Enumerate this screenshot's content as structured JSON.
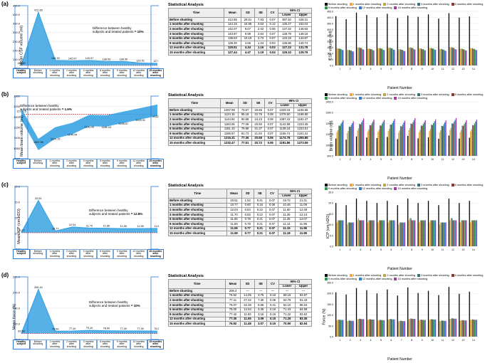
{
  "colors": {
    "line_fill": "#3aa3e3",
    "baseline": "#d8262b",
    "frame": "#2a7ad4",
    "bars": [
      "#000000",
      "#f0a83c",
      "#bfa84a",
      "#3e6e7a",
      "#8a3a2a",
      "#2a9a4a",
      "#2a7ad4",
      "#a33aa3"
    ],
    "grid": "#cfd4d8"
  },
  "legend_labels": [
    "Before shunting",
    "1 months after shunting",
    "2 months after shunting",
    "3 months after shunting",
    "6 months after shunting",
    "9 months after shunting",
    "12 months after shunting",
    "15 months after shunting"
  ],
  "x_categories": [
    "Healthy subject",
    "Before shunting",
    "1 months after shunting",
    "2 months after shunting",
    "3 months after shunting",
    "6 months after shunting",
    "9 months after shunting",
    "12 months after shunting",
    "15 months after shunting"
  ],
  "panels": [
    {
      "id": "a",
      "ylabel": "Mean CSF volume (ml)",
      "bar_ylabel": "CSF volume (ml)",
      "ylim": [
        100,
        450
      ],
      "yticks": [
        100,
        150,
        200,
        250,
        300,
        350,
        400,
        450
      ],
      "baseline": 116.3,
      "values": [
        116.3,
        412.85,
        144.15,
        142.07,
        143.97,
        138.53,
        138.3,
        129.51,
        127.44
      ],
      "diff_text": "Difference between healthy\nsubjects and treated patients",
      "diff_pct": "= 10%",
      "diff_xy": [
        130,
        38
      ],
      "bar_ylim": [
        0,
        450
      ],
      "bar_yticks": [
        0,
        50,
        100,
        150,
        200,
        250,
        300,
        350,
        400,
        450
      ],
      "bars": [
        [
          410,
          145,
          140,
          142,
          138,
          138,
          130,
          128
        ],
        [
          385,
          130,
          128,
          130,
          125,
          125,
          118,
          116
        ],
        [
          440,
          150,
          148,
          150,
          145,
          145,
          135,
          132
        ],
        [
          420,
          140,
          138,
          140,
          135,
          135,
          128,
          125
        ],
        [
          400,
          145,
          142,
          145,
          140,
          140,
          130,
          128
        ],
        [
          430,
          148,
          146,
          148,
          142,
          142,
          132,
          130
        ],
        [
          395,
          135,
          133,
          135,
          130,
          130,
          122,
          120
        ],
        [
          415,
          150,
          148,
          150,
          145,
          145,
          135,
          132
        ],
        [
          405,
          142,
          140,
          142,
          136,
          136,
          128,
          126
        ],
        [
          425,
          146,
          144,
          146,
          140,
          140,
          132,
          130
        ],
        [
          390,
          138,
          136,
          138,
          132,
          132,
          124,
          122
        ],
        [
          435,
          152,
          150,
          152,
          146,
          146,
          136,
          134
        ],
        [
          398,
          140,
          138,
          140,
          134,
          134,
          126,
          124
        ],
        [
          408,
          144,
          142,
          144,
          138,
          138,
          130,
          128
        ]
      ],
      "stats": [
        [
          "Before shunting",
          "412.85",
          "29.51",
          "7.83",
          "0.07",
          "397.40",
          "428.31"
        ],
        [
          "1 months after shunting",
          "144.15",
          "16.96",
          "4.53",
          "0.12",
          "135.27",
          "153.04"
        ],
        [
          "2 months after shunting",
          "142.07",
          "9.07",
          "2.42",
          "0.06",
          "137.32",
          "146.83"
        ],
        [
          "3 months after shunting",
          "143.97",
          "9.89",
          "2.64",
          "0.07",
          "138.79",
          "149.16"
        ],
        [
          "6 months after shunting",
          "138.53",
          "10.19",
          "2.72",
          "0.07",
          "133.19",
          "143.87"
        ],
        [
          "9 months after shunting",
          "138.30",
          "4.65",
          "1.24",
          "0.03",
          "135.86",
          "140.74"
        ],
        [
          "12 months after shunting",
          "129.51",
          "4.34",
          "1.16",
          "0.03",
          "127.23",
          "131.78"
        ],
        [
          "15 months after shunting",
          "127.44",
          "4.47",
          "1.19",
          "0.04",
          "125.10",
          "129.79"
        ]
      ]
    },
    {
      "id": "b",
      "ylabel": "Mean brain volume (ml)",
      "bar_ylabel": "Brain volume (ml)",
      "ylim": [
        1000,
        1300
      ],
      "yticks": [
        1000,
        1050,
        1100,
        1150,
        1200,
        1250,
        1300
      ],
      "baseline": 1213.15,
      "values": [
        1213.15,
        1067.99,
        1124.15,
        1144.94,
        1183.06,
        1181.1,
        1198.57,
        1215.31,
        1232.47
      ],
      "band": true,
      "diff_text": "Difference between healthy\nsubjects and treated patients",
      "diff_pct": "= 1.6%",
      "diff_xy": [
        28,
        20
      ],
      "bar_ylim": [
        900,
        1400
      ],
      "bar_yticks": [
        900,
        1000,
        1100,
        1200,
        1300,
        1400
      ],
      "bars": [
        [
          1060,
          1120,
          1140,
          1180,
          1178,
          1196,
          1212,
          1230
        ],
        [
          1050,
          1110,
          1130,
          1170,
          1168,
          1186,
          1202,
          1220
        ],
        [
          1080,
          1135,
          1155,
          1195,
          1192,
          1210,
          1228,
          1245
        ],
        [
          1070,
          1125,
          1145,
          1185,
          1182,
          1200,
          1218,
          1235
        ],
        [
          1065,
          1122,
          1142,
          1182,
          1180,
          1198,
          1215,
          1232
        ],
        [
          1075,
          1130,
          1150,
          1190,
          1188,
          1205,
          1222,
          1240
        ],
        [
          1055,
          1115,
          1135,
          1175,
          1172,
          1190,
          1208,
          1225
        ],
        [
          1085,
          1138,
          1158,
          1198,
          1195,
          1212,
          1230,
          1248
        ],
        [
          1062,
          1120,
          1140,
          1180,
          1178,
          1195,
          1212,
          1230
        ],
        [
          1072,
          1128,
          1148,
          1188,
          1185,
          1202,
          1220,
          1238
        ],
        [
          1058,
          1118,
          1138,
          1178,
          1175,
          1192,
          1210,
          1228
        ],
        [
          1088,
          1140,
          1160,
          1200,
          1198,
          1215,
          1232,
          1250
        ],
        [
          1060,
          1120,
          1140,
          1180,
          1178,
          1195,
          1212,
          1230
        ],
        [
          1068,
          1125,
          1145,
          1185,
          1182,
          1200,
          1218,
          1235
        ]
      ],
      "stats": [
        [
          "Before shunting",
          "1067.99",
          "73.57",
          "19.66",
          "0.07",
          "1029.44",
          "1106.55"
        ],
        [
          "1 months after shunting",
          "1124.15",
          "85.18",
          "22.76",
          "0.08",
          "1079.50",
          "1168.80"
        ],
        [
          "2 months after shunting",
          "1144.94",
          "90.68",
          "24.23",
          "0.08",
          "1097.42",
          "1192.47"
        ],
        [
          "3 months after shunting",
          "1183.06",
          "77.06",
          "20.60",
          "0.07",
          "1142.68",
          "1223.45"
        ],
        [
          "6 months after shunting",
          "1181.10",
          "79.98",
          "21.37",
          "0.07",
          "1139.18",
          "1223.01"
        ],
        [
          "9 months after shunting",
          "1198.57",
          "81.73",
          "21.84",
          "0.07",
          "1155.74",
          "1241.41"
        ],
        [
          "12 months after shunting",
          "1215.31",
          "77.36",
          "20.68",
          "0.06",
          "1174.78",
          "1255.85"
        ],
        [
          "15 months after shunting",
          "1232.47",
          "77.51",
          "20.72",
          "0.06",
          "1191.86",
          "1273.09"
        ]
      ]
    },
    {
      "id": "c",
      "ylabel": "Mean ICP (cm H2O)",
      "bar_ylabel": "ICP (cm H2O)",
      "ylim": [
        5,
        25
      ],
      "yticks": [
        5,
        10,
        15,
        20,
        25
      ],
      "baseline": 10.27,
      "values": [
        10.27,
        20.51,
        10.77,
        12.04,
        11.7,
        11.66,
        11.55,
        11.55,
        11.59
      ],
      "diff_text": "Difference between healthy\nsubjects and treated patients",
      "diff_pct": "= 12.8%",
      "diff_xy": [
        125,
        40
      ],
      "bar_ylim": [
        0,
        25
      ],
      "bar_yticks": [
        0,
        5,
        10,
        15,
        20,
        25
      ],
      "bars": [
        [
          20,
          11,
          12,
          12,
          12,
          12,
          12,
          12
        ],
        [
          19,
          10,
          11,
          11,
          11,
          11,
          11,
          11
        ],
        [
          22,
          12,
          13,
          12,
          12,
          12,
          12,
          12
        ],
        [
          21,
          11,
          12,
          12,
          12,
          12,
          12,
          12
        ],
        [
          20,
          11,
          12,
          12,
          12,
          12,
          12,
          12
        ],
        [
          21,
          11,
          12,
          12,
          12,
          12,
          12,
          12
        ],
        [
          19,
          10,
          11,
          11,
          11,
          11,
          11,
          11
        ],
        [
          22,
          12,
          13,
          13,
          12,
          12,
          12,
          12
        ],
        [
          20,
          11,
          12,
          12,
          12,
          12,
          12,
          12
        ],
        [
          21,
          11,
          12,
          12,
          12,
          12,
          12,
          12
        ],
        [
          19,
          10,
          11,
          11,
          11,
          11,
          11,
          11
        ],
        [
          22,
          12,
          13,
          13,
          12,
          12,
          12,
          12
        ],
        [
          20,
          11,
          12,
          12,
          12,
          12,
          12,
          12
        ],
        [
          21,
          11,
          12,
          12,
          12,
          12,
          12,
          12
        ]
      ],
      "stats": [
        [
          "Before shunting",
          "20.51",
          "1.52",
          "0.41",
          "0.07",
          "19.72",
          "21.31"
        ],
        [
          "1 months after shunting",
          "10.77",
          "0.60",
          "0.16",
          "0.06",
          "10.46",
          "11.09"
        ],
        [
          "2 months after shunting",
          "12.04",
          "0.84",
          "0.22",
          "0.07",
          "11.60",
          "12.48"
        ],
        [
          "3 months after shunting",
          "11.70",
          "0.83",
          "0.22",
          "0.07",
          "11.26",
          "12.13"
        ],
        [
          "6 months after shunting",
          "11.66",
          "0.78",
          "0.21",
          "0.07",
          "11.25",
          "12.07"
        ],
        [
          "9 months after shunting",
          "11.55",
          "0.78",
          "0.21",
          "0.07",
          "11.14",
          "11.96"
        ],
        [
          "12 months after shunting",
          "11.55",
          "0.77",
          "0.21",
          "0.07",
          "11.15",
          "11.96"
        ],
        [
          "15 months after shunting",
          "11.59",
          "0.77",
          "0.21",
          "0.07",
          "11.18",
          "11.99"
        ]
      ]
    },
    {
      "id": "d",
      "ylabel": "Mean force (N)",
      "bar_ylabel": "Force (N)",
      "ylim": [
        50,
        250
      ],
      "yticks": [
        50,
        100,
        150,
        200,
        250
      ],
      "baseline": 69.5,
      "values": [
        69.5,
        209.4,
        76.5,
        77.1,
        79.1,
        78.0,
        77.4,
        77.3,
        76.9
      ],
      "diff_text": "Difference between healthy\nsubjects and treated patients",
      "diff_pct": "= 10%",
      "diff_xy": [
        125,
        42
      ],
      "bar_ylim": [
        0,
        250
      ],
      "bar_yticks": [
        0,
        50,
        100,
        150,
        200,
        250
      ],
      "bars": [
        [
          205,
          76,
          77,
          79,
          78,
          77,
          77,
          77
        ],
        [
          195,
          72,
          73,
          75,
          74,
          73,
          73,
          73
        ],
        [
          225,
          80,
          81,
          83,
          82,
          81,
          81,
          81
        ],
        [
          215,
          78,
          79,
          81,
          80,
          79,
          79,
          79
        ],
        [
          200,
          75,
          76,
          78,
          77,
          76,
          76,
          76
        ],
        [
          218,
          79,
          80,
          82,
          81,
          80,
          80,
          80
        ],
        [
          190,
          71,
          72,
          74,
          73,
          72,
          72,
          72
        ],
        [
          228,
          81,
          82,
          84,
          83,
          82,
          82,
          82
        ],
        [
          202,
          76,
          77,
          79,
          78,
          77,
          77,
          77
        ],
        [
          212,
          78,
          79,
          81,
          80,
          79,
          79,
          79
        ],
        [
          192,
          72,
          73,
          75,
          74,
          73,
          73,
          73
        ],
        [
          230,
          82,
          83,
          85,
          84,
          83,
          83,
          83
        ],
        [
          198,
          74,
          75,
          77,
          76,
          75,
          75,
          75
        ],
        [
          208,
          77,
          78,
          80,
          79,
          78,
          78,
          78
        ]
      ],
      "stats": [
        [
          "Before shunting",
          "209.4",
          "—",
          "—",
          "—",
          "—",
          "—"
        ],
        [
          "1 months after shunting",
          "76.52",
          "14.05",
          "3.75",
          "0.18",
          "69.16",
          "83.87"
        ],
        [
          "2 months after shunting",
          "77.11",
          "27.32",
          "7.30",
          "0.35",
          "62.79",
          "91.43"
        ],
        [
          "3 months after shunting",
          "79.07",
          "32.38",
          "8.65",
          "0.41",
          "62.10",
          "96.04"
        ],
        [
          "6 months after shunting",
          "78.00",
          "12.54",
          "3.35",
          "0.16",
          "71.43",
          "84.58"
        ],
        [
          "9 months after shunting",
          "77.42",
          "11.83",
          "3.16",
          "0.15",
          "71.22",
          "83.62"
        ],
        [
          "12 months after shunting",
          "77.30",
          "11.55",
          "3.09",
          "0.15",
          "71.25",
          "83.35"
        ],
        [
          "15 months after shunting",
          "76.92",
          "11.48",
          "3.07",
          "0.15",
          "70.90",
          "82.94"
        ]
      ]
    }
  ]
}
